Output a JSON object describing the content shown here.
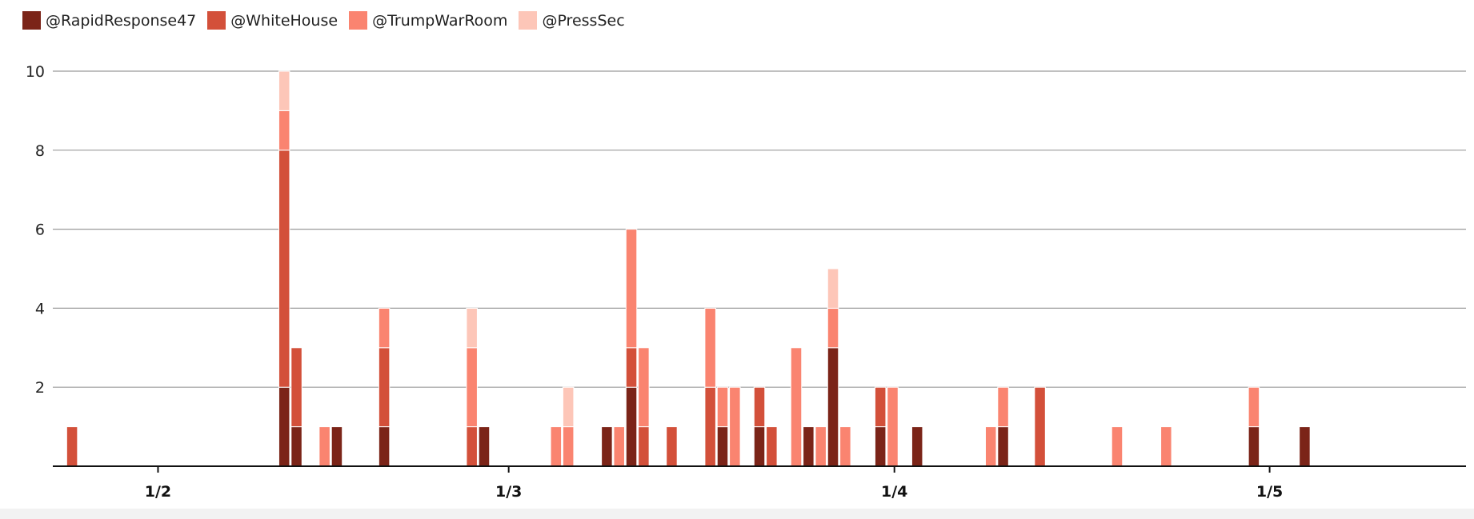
{
  "chart_data": {
    "type": "bar",
    "stacked": true,
    "legend_position": "top-left",
    "grid": true,
    "ylim": [
      0,
      10
    ],
    "yticks": [
      2,
      4,
      6,
      8,
      10
    ],
    "x_ticks": [
      {
        "label": "1/2",
        "x": 1.0
      },
      {
        "label": "1/3",
        "x": 2.0
      },
      {
        "label": "1/4",
        "x": 3.1
      },
      {
        "label": "1/5",
        "x": 4.17
      }
    ],
    "xlim": [
      0.7,
      4.73
    ],
    "bar_width": 0.0308,
    "series": [
      {
        "name": "@RapidResponse47",
        "color": "#7b2418"
      },
      {
        "name": "@WhiteHouse",
        "color": "#d3503a"
      },
      {
        "name": "@TrumpWarRoom",
        "color": "#fa8470"
      },
      {
        "name": "@PressSec",
        "color": "#fdc6b8"
      }
    ],
    "bars": [
      {
        "x": 0.755,
        "values": [
          0,
          1,
          0,
          0
        ]
      },
      {
        "x": 1.36,
        "values": [
          2,
          6,
          1,
          1
        ]
      },
      {
        "x": 1.395,
        "values": [
          1,
          2,
          0,
          0
        ]
      },
      {
        "x": 1.475,
        "values": [
          0,
          0,
          1,
          0
        ]
      },
      {
        "x": 1.51,
        "values": [
          1,
          0,
          0,
          0
        ]
      },
      {
        "x": 1.645,
        "values": [
          1,
          2,
          1,
          0
        ]
      },
      {
        "x": 1.895,
        "values": [
          0,
          1,
          2,
          1
        ]
      },
      {
        "x": 1.93,
        "values": [
          1,
          0,
          0,
          0
        ]
      },
      {
        "x": 2.135,
        "values": [
          0,
          0,
          1,
          0
        ]
      },
      {
        "x": 2.17,
        "values": [
          0,
          0,
          1,
          1
        ]
      },
      {
        "x": 2.28,
        "values": [
          1,
          0,
          0,
          0
        ]
      },
      {
        "x": 2.315,
        "values": [
          0,
          0,
          1,
          0
        ]
      },
      {
        "x": 2.35,
        "values": [
          2,
          1,
          3,
          0
        ]
      },
      {
        "x": 2.385,
        "values": [
          0,
          1,
          2,
          0
        ]
      },
      {
        "x": 2.465,
        "values": [
          0,
          1,
          0,
          0
        ]
      },
      {
        "x": 2.575,
        "values": [
          0,
          2,
          2,
          0
        ]
      },
      {
        "x": 2.61,
        "values": [
          1,
          0,
          1,
          0
        ]
      },
      {
        "x": 2.645,
        "values": [
          0,
          0,
          2,
          0
        ]
      },
      {
        "x": 2.715,
        "values": [
          1,
          1,
          0,
          0
        ]
      },
      {
        "x": 2.75,
        "values": [
          0,
          1,
          0,
          0
        ]
      },
      {
        "x": 2.82,
        "values": [
          0,
          0,
          3,
          0
        ]
      },
      {
        "x": 2.855,
        "values": [
          1,
          0,
          0,
          0
        ]
      },
      {
        "x": 2.89,
        "values": [
          0,
          0,
          1,
          0
        ]
      },
      {
        "x": 2.925,
        "values": [
          3,
          0,
          1,
          1
        ]
      },
      {
        "x": 2.96,
        "values": [
          0,
          0,
          1,
          0
        ]
      },
      {
        "x": 3.06,
        "values": [
          1,
          1,
          0,
          0
        ]
      },
      {
        "x": 3.095,
        "values": [
          0,
          0,
          2,
          0
        ]
      },
      {
        "x": 3.165,
        "values": [
          1,
          0,
          0,
          0
        ]
      },
      {
        "x": 3.375,
        "values": [
          0,
          0,
          1,
          0
        ]
      },
      {
        "x": 3.41,
        "values": [
          1,
          0,
          1,
          0
        ]
      },
      {
        "x": 3.515,
        "values": [
          0,
          2,
          0,
          0
        ]
      },
      {
        "x": 3.735,
        "values": [
          0,
          0,
          1,
          0
        ]
      },
      {
        "x": 3.875,
        "values": [
          0,
          0,
          1,
          0
        ]
      },
      {
        "x": 4.125,
        "values": [
          1,
          0,
          1,
          0
        ]
      },
      {
        "x": 4.27,
        "values": [
          1,
          0,
          0,
          0
        ]
      }
    ]
  }
}
